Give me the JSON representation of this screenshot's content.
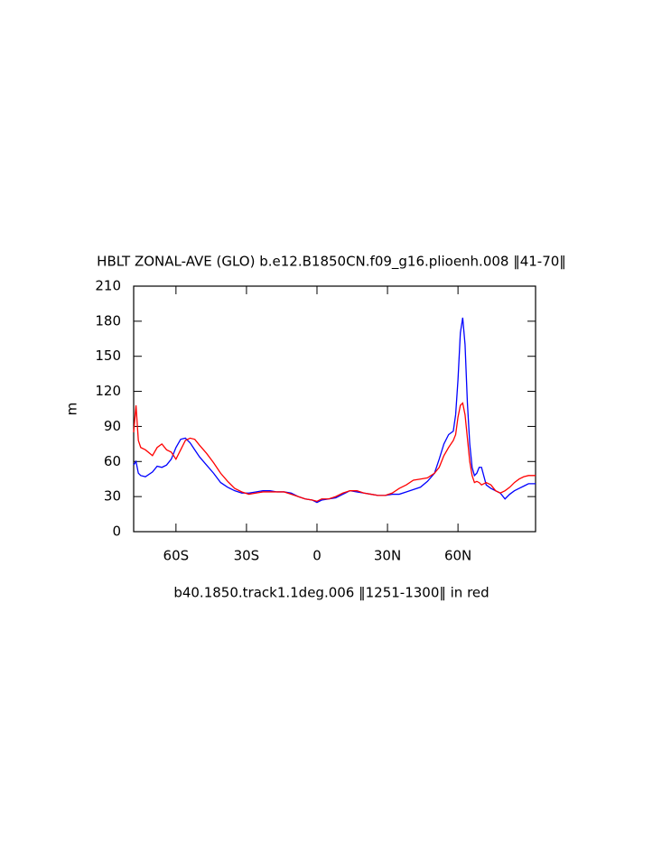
{
  "chart_data": {
    "type": "line",
    "title": "HBLT ZONAL-AVE (GLO) b.e12.B1850CN.f09_g16.plioenh.008 ‖41-70‖",
    "x_label": "b40.1850.track1.1deg.006 ‖1251-1300‖ in red",
    "y_label": "m",
    "x": [
      -78,
      -77,
      -76,
      -75,
      -73,
      -70,
      -68,
      -66,
      -64,
      -62,
      -60,
      -58,
      -56,
      -54,
      -52,
      -50,
      -47,
      -44,
      -41,
      -38,
      -35,
      -32,
      -29,
      -26,
      -23,
      -20,
      -17,
      -14,
      -11,
      -8,
      -5,
      -2,
      0,
      2,
      5,
      8,
      11,
      14,
      17,
      20,
      23,
      26,
      29,
      32,
      35,
      38,
      41,
      44,
      47,
      50,
      52,
      54,
      56,
      58,
      59,
      60,
      61,
      62,
      63,
      64,
      65,
      66,
      67,
      68,
      69,
      70,
      72,
      74,
      76,
      78,
      80,
      82,
      84,
      86,
      88,
      90,
      93
    ],
    "series": [
      {
        "color": "#0000ff",
        "values": [
          57,
          60,
          50,
          48,
          47,
          51,
          56,
          55,
          57,
          62,
          72,
          79,
          80,
          76,
          70,
          64,
          57,
          50,
          42,
          38,
          35,
          33,
          33,
          34,
          35,
          35,
          34,
          34,
          33,
          30,
          28,
          27,
          25,
          27,
          28,
          29,
          32,
          35,
          34,
          33,
          32,
          31,
          31,
          32,
          32,
          34,
          36,
          38,
          43,
          50,
          62,
          75,
          83,
          86,
          100,
          130,
          170,
          183,
          160,
          110,
          75,
          55,
          48,
          50,
          55,
          55,
          40,
          37,
          35,
          33,
          28,
          32,
          35,
          37,
          39,
          41,
          41
        ]
      },
      {
        "color": "#ff0000",
        "values": [
          85,
          108,
          78,
          72,
          70,
          65,
          72,
          75,
          70,
          68,
          62,
          70,
          78,
          80,
          79,
          74,
          67,
          59,
          50,
          43,
          37,
          34,
          32,
          33,
          34,
          34,
          34,
          34,
          32,
          30,
          28,
          27,
          26,
          28,
          28,
          30,
          33,
          35,
          35,
          33,
          32,
          31,
          31,
          33,
          37,
          40,
          44,
          45,
          46,
          50,
          55,
          65,
          72,
          78,
          83,
          98,
          108,
          110,
          100,
          80,
          60,
          48,
          42,
          43,
          42,
          40,
          42,
          40,
          35,
          33,
          35,
          38,
          42,
          45,
          47,
          48,
          48
        ]
      }
    ],
    "xlim": [
      -78,
      93
    ],
    "xticks": [
      {
        "value": -60,
        "label": "60S"
      },
      {
        "value": -30,
        "label": "30S"
      },
      0,
      {
        "value": 30,
        "label": "30N"
      },
      {
        "value": 60,
        "label": "60N"
      }
    ],
    "ylim": [
      0,
      210
    ],
    "yticks": [
      0,
      30,
      60,
      90,
      120,
      150,
      180,
      210
    ]
  }
}
